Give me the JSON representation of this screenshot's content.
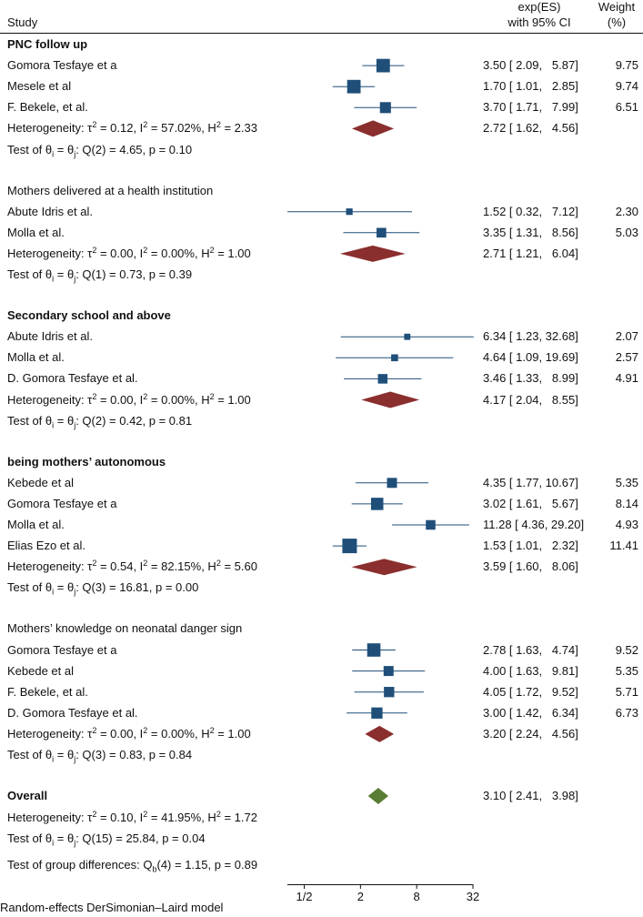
{
  "chart_data": {
    "type": "forest",
    "header": {
      "study": "Study",
      "es_line1": "exp(ES)",
      "es_line2": "with 95% CI",
      "weight_line1": "Weight",
      "weight_line2": "(%)"
    },
    "x_scale": "log",
    "x_ticks": [
      {
        "value": 0.5,
        "label": "1/2"
      },
      {
        "value": 2,
        "label": "2"
      },
      {
        "value": 8,
        "label": "8"
      },
      {
        "value": 32,
        "label": "32"
      }
    ],
    "xlim": [
      0.33,
      32
    ],
    "groups": [
      {
        "title": "PNC follow up",
        "title_bold": true,
        "studies": [
          {
            "name": "Gomora Tesfaye et a",
            "es": 3.5,
            "lo": 2.09,
            "hi": 5.87,
            "ci_text": "3.50 [ 2.09,   5.87]",
            "weight": "9.75"
          },
          {
            "name": "Mesele et al",
            "es": 1.7,
            "lo": 1.01,
            "hi": 2.85,
            "ci_text": "1.70 [ 1.01,   2.85]",
            "weight": "9.74"
          },
          {
            "name": "F. Bekele, et al.",
            "es": 3.7,
            "lo": 1.71,
            "hi": 7.99,
            "ci_text": "3.70 [ 1.71,   7.99]",
            "weight": "6.51"
          }
        ],
        "pooled": {
          "es": 2.72,
          "lo": 1.62,
          "hi": 4.56,
          "ci_text": "2.72 [ 1.62,   4.56]"
        },
        "heterogeneity": {
          "prefix": "Heterogeneity: τ",
          "tau2": " = 0.12, I",
          "i2": " = 57.02%, H",
          "h2": " = 2.33"
        },
        "test": {
          "prefix": "Test of θ",
          "mid": " = θ",
          "rest": ": Q(2) = 4.65, p = 0.10"
        }
      },
      {
        "title": "Mothers delivered at a health institution",
        "title_bold": false,
        "studies": [
          {
            "name": "Abute Idris et al.",
            "es": 1.52,
            "lo": 0.32,
            "hi": 7.12,
            "ci_text": "1.52 [ 0.32,   7.12]",
            "weight": "2.30"
          },
          {
            "name": "Molla et al.",
            "es": 3.35,
            "lo": 1.31,
            "hi": 8.56,
            "ci_text": "3.35 [ 1.31,   8.56]",
            "weight": "5.03"
          }
        ],
        "pooled": {
          "es": 2.71,
          "lo": 1.21,
          "hi": 6.04,
          "ci_text": "2.71 [ 1.21,   6.04]"
        },
        "heterogeneity": {
          "prefix": "Heterogeneity: τ",
          "tau2": " = 0.00, I",
          "i2": " = 0.00%, H",
          "h2": " = 1.00"
        },
        "test": {
          "prefix": "Test of θ",
          "mid": " = θ",
          "rest": ": Q(1) = 0.73, p = 0.39"
        }
      },
      {
        "title": "Secondary school and above",
        "title_bold": true,
        "studies": [
          {
            "name": "Abute Idris et al.",
            "es": 6.34,
            "lo": 1.23,
            "hi": 32.68,
            "ci_text": "6.34 [ 1.23, 32.68]",
            "weight": "2.07"
          },
          {
            "name": "Molla et al.",
            "es": 4.64,
            "lo": 1.09,
            "hi": 19.69,
            "ci_text": "4.64 [ 1.09, 19.69]",
            "weight": "2.57"
          },
          {
            "name": "D. Gomora Tesfaye et al.",
            "es": 3.46,
            "lo": 1.33,
            "hi": 8.99,
            "ci_text": "3.46 [ 1.33,   8.99]",
            "weight": "4.91"
          }
        ],
        "pooled": {
          "es": 4.17,
          "lo": 2.04,
          "hi": 8.55,
          "ci_text": "4.17 [ 2.04,   8.55]"
        },
        "heterogeneity": {
          "prefix": "Heterogeneity: τ",
          "tau2": " = 0.00, I",
          "i2": " = 0.00%, H",
          "h2": " = 1.00"
        },
        "test": {
          "prefix": "Test of θ",
          "mid": " = θ",
          "rest": ": Q(2) = 0.42, p = 0.81"
        }
      },
      {
        "title": "being mothers’ autonomous",
        "title_bold": true,
        "studies": [
          {
            "name": "Kebede et al",
            "es": 4.35,
            "lo": 1.77,
            "hi": 10.67,
            "ci_text": "4.35 [ 1.77, 10.67]",
            "weight": "5.35"
          },
          {
            "name": "Gomora Tesfaye et a",
            "es": 3.02,
            "lo": 1.61,
            "hi": 5.67,
            "ci_text": "3.02 [ 1.61,   5.67]",
            "weight": "8.14"
          },
          {
            "name": "Molla et al.",
            "es": 11.28,
            "lo": 4.36,
            "hi": 29.2,
            "ci_text": "11.28 [ 4.36, 29.20]",
            "weight": "4.93"
          },
          {
            "name": "Elias Ezo et al.",
            "es": 1.53,
            "lo": 1.01,
            "hi": 2.32,
            "ci_text": "1.53 [ 1.01,   2.32]",
            "weight": "11.41"
          }
        ],
        "pooled": {
          "es": 3.59,
          "lo": 1.6,
          "hi": 8.06,
          "ci_text": "3.59 [ 1.60,   8.06]"
        },
        "heterogeneity": {
          "prefix": "Heterogeneity: τ",
          "tau2": " = 0.54, I",
          "i2": " = 82.15%, H",
          "h2": " = 5.60"
        },
        "test": {
          "prefix": "Test of θ",
          "mid": " = θ",
          "rest": ": Q(3) = 16.81, p = 0.00"
        }
      },
      {
        "title": "Mothers’ knowledge on neonatal danger sign",
        "title_bold": false,
        "studies": [
          {
            "name": "Gomora Tesfaye et a",
            "es": 2.78,
            "lo": 1.63,
            "hi": 4.74,
            "ci_text": "2.78 [ 1.63,   4.74]",
            "weight": "9.52"
          },
          {
            "name": "Kebede et al",
            "es": 4.0,
            "lo": 1.63,
            "hi": 9.81,
            "ci_text": "4.00 [ 1.63,   9.81]",
            "weight": "5.35"
          },
          {
            "name": "F. Bekele, et al.",
            "es": 4.05,
            "lo": 1.72,
            "hi": 9.52,
            "ci_text": "4.05 [ 1.72,   9.52]",
            "weight": "5.71"
          },
          {
            "name": "D. Gomora Tesfaye et al.",
            "es": 3.0,
            "lo": 1.42,
            "hi": 6.34,
            "ci_text": "3.00 [ 1.42,   6.34]",
            "weight": "6.73"
          }
        ],
        "pooled": {
          "es": 3.2,
          "lo": 2.24,
          "hi": 4.56,
          "ci_text": "3.20 [ 2.24,   4.56]"
        },
        "heterogeneity": {
          "prefix": "Heterogeneity: τ",
          "tau2": " = 0.00, I",
          "i2": " = 0.00%, H",
          "h2": " = 1.00"
        },
        "test": {
          "prefix": "Test of θ",
          "mid": " = θ",
          "rest": ": Q(3) = 0.83, p = 0.84"
        }
      }
    ],
    "overall": {
      "title": "Overall",
      "es": 3.1,
      "lo": 2.41,
      "hi": 3.98,
      "ci_text": "3.10 [ 2.41,   3.98]",
      "heterogeneity": {
        "prefix": "Heterogeneity: τ",
        "tau2": " = 0.10, I",
        "i2": " = 41.95%, H",
        "h2": " = 1.72"
      },
      "test": {
        "prefix": "Test of θ",
        "mid": " = θ",
        "rest": ": Q(15) = 25.84, p = 0.04"
      },
      "group_test": {
        "prefix": "Test of group differences: Q",
        "sub": "b",
        "rest": "(4) = 1.15, p = 0.89"
      }
    },
    "footnote": "Random-effects DerSimonian–Laird model",
    "colors": {
      "study_marker": "#1f4e79",
      "study_ci": "#1f4e79",
      "group_diamond": "#8b2e2e",
      "overall_diamond": "#5a7d34",
      "axis": "#111111"
    }
  }
}
